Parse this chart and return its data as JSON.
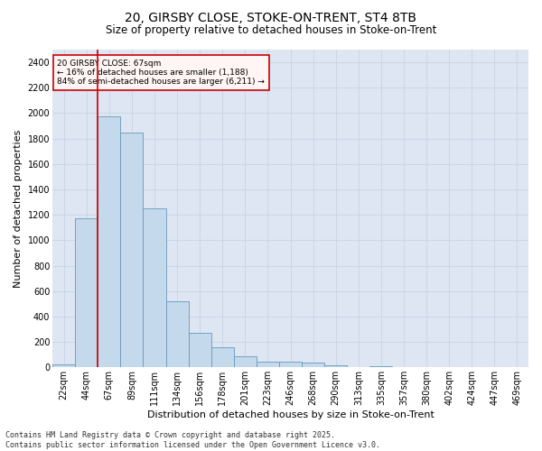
{
  "title_line1": "20, GIRSBY CLOSE, STOKE-ON-TRENT, ST4 8TB",
  "title_line2": "Size of property relative to detached houses in Stoke-on-Trent",
  "xlabel": "Distribution of detached houses by size in Stoke-on-Trent",
  "ylabel": "Number of detached properties",
  "categories": [
    "22sqm",
    "44sqm",
    "67sqm",
    "89sqm",
    "111sqm",
    "134sqm",
    "156sqm",
    "178sqm",
    "201sqm",
    "223sqm",
    "246sqm",
    "268sqm",
    "290sqm",
    "313sqm",
    "335sqm",
    "357sqm",
    "380sqm",
    "402sqm",
    "424sqm",
    "447sqm",
    "469sqm"
  ],
  "values": [
    25,
    1175,
    1975,
    1850,
    1250,
    520,
    270,
    155,
    85,
    45,
    45,
    35,
    15,
    5,
    10,
    5,
    3,
    3,
    2,
    2,
    1
  ],
  "bar_color": "#c5d9ed",
  "bar_edge_color": "#6699bb",
  "vline_color": "#cc0000",
  "vline_bar_index": 2,
  "annotation_text": "20 GIRSBY CLOSE: 67sqm\n← 16% of detached houses are smaller (1,188)\n84% of semi-detached houses are larger (6,211) →",
  "annotation_box_facecolor": "#fff5f5",
  "annotation_box_edgecolor": "#cc0000",
  "ylim": [
    0,
    2500
  ],
  "yticks": [
    0,
    200,
    400,
    600,
    800,
    1000,
    1200,
    1400,
    1600,
    1800,
    2000,
    2200,
    2400
  ],
  "grid_color": "#c8d4e4",
  "background_color": "#dde6f2",
  "footer_text": "Contains HM Land Registry data © Crown copyright and database right 2025.\nContains public sector information licensed under the Open Government Licence v3.0.",
  "title_fontsize": 10,
  "subtitle_fontsize": 8.5,
  "ylabel_fontsize": 8,
  "xlabel_fontsize": 8,
  "tick_fontsize": 7,
  "annotation_fontsize": 6.5,
  "footer_fontsize": 6
}
